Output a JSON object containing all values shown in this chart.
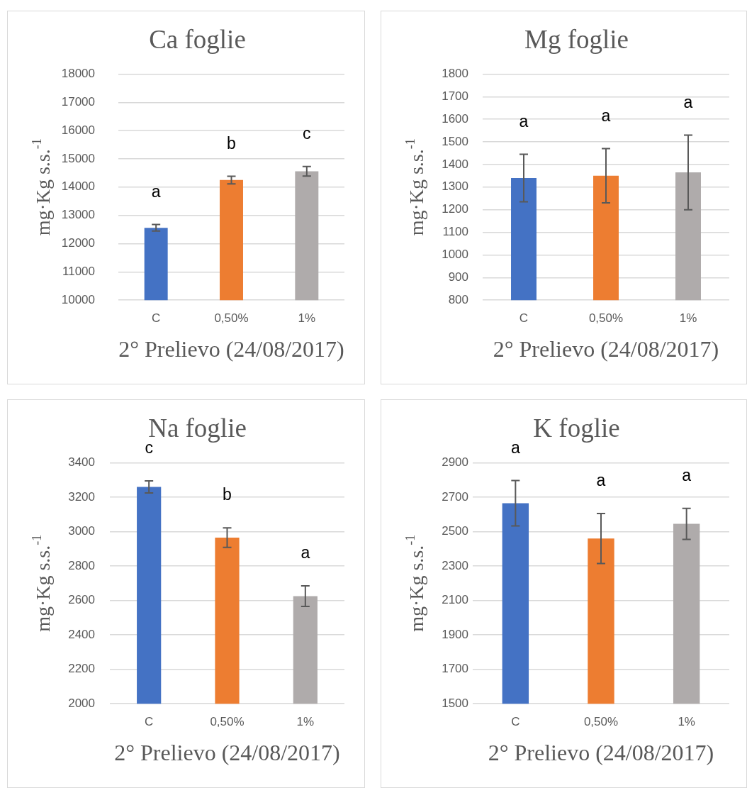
{
  "chart_data": [
    {
      "type": "bar",
      "title": "Ca foglie",
      "xlabel": "2° Prelievo (24/08/2017)",
      "ylabel": "mg·Kg s.s.$^{-1}$",
      "categories": [
        "C",
        "0,50%",
        "1%"
      ],
      "values": [
        12560,
        14250,
        14560
      ],
      "colors": [
        "#4472c4",
        "#ed7d31",
        "#afabab"
      ],
      "errors": [
        115,
        135,
        170
      ],
      "ylim": [
        10000,
        18000
      ],
      "yticks": [
        10000,
        11000,
        12000,
        13000,
        14000,
        15000,
        16000,
        17000,
        18000
      ],
      "grid": "y",
      "annotations": [
        "a",
        "b",
        "c"
      ]
    },
    {
      "type": "bar",
      "title": "Mg foglie",
      "xlabel": "2° Prelievo (24/08/2017)",
      "ylabel": "mg·Kg s.s.$^{-1}$",
      "categories": [
        "C",
        "0,50%",
        "1%"
      ],
      "values": [
        1340,
        1350,
        1365
      ],
      "colors": [
        "#4472c4",
        "#ed7d31",
        "#afabab"
      ],
      "errors": [
        105,
        120,
        165
      ],
      "ylim": [
        800,
        1800
      ],
      "yticks": [
        800,
        900,
        1000,
        1100,
        1200,
        1300,
        1400,
        1500,
        1600,
        1700,
        1800
      ],
      "grid": "y",
      "annotations": [
        "a",
        "a",
        "a"
      ]
    },
    {
      "type": "bar",
      "title": "Na foglie",
      "xlabel": "2° Prelievo (24/08/2017)",
      "ylabel": "mg·Kg s.s.$^{-1}$",
      "categories": [
        "C",
        "0,50%",
        "1%"
      ],
      "values": [
        3260,
        2965,
        2625
      ],
      "colors": [
        "#4472c4",
        "#ed7d31",
        "#afabab"
      ],
      "errors": [
        35,
        57,
        60
      ],
      "ylim": [
        2000,
        3400
      ],
      "yticks": [
        2000,
        2200,
        2400,
        2600,
        2800,
        3000,
        3200,
        3400
      ],
      "grid": "y",
      "annotations": [
        "c",
        "b",
        "a"
      ]
    },
    {
      "type": "bar",
      "title": "K foglie",
      "xlabel": "2° Prelievo (24/08/2017)",
      "ylabel": "mg·Kg s.s.$^{-1}$",
      "categories": [
        "C",
        "0,50%",
        "1%"
      ],
      "values": [
        2665,
        2460,
        2545
      ],
      "colors": [
        "#4472c4",
        "#ed7d31",
        "#afabab"
      ],
      "errors": [
        132,
        145,
        90
      ],
      "ylim": [
        1500,
        2900
      ],
      "yticks": [
        1500,
        1700,
        1900,
        2100,
        2300,
        2500,
        2700,
        2900
      ],
      "grid": "y",
      "annotations": [
        "a",
        "a",
        "a"
      ]
    }
  ]
}
